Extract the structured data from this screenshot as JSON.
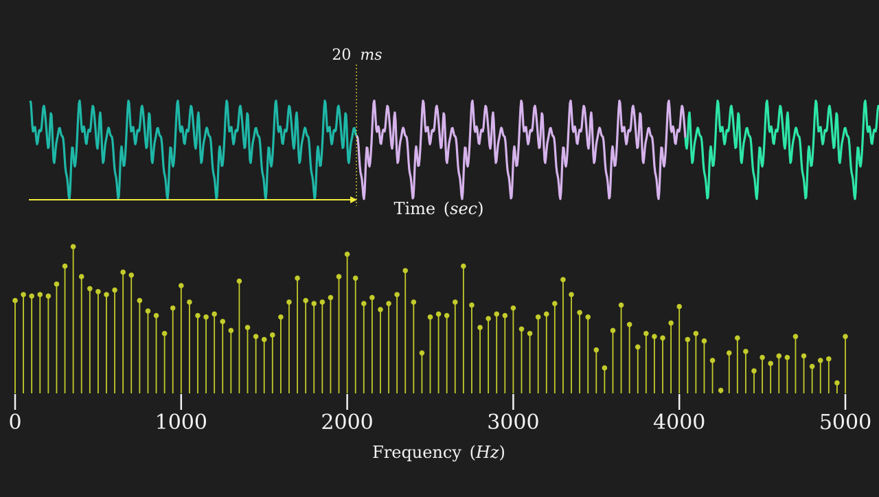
{
  "colors": {
    "background": "#1e1e1e",
    "segment_1": "#1fb8a8",
    "segment_2": "#d6b3ec",
    "segment_3": "#2ee6a8",
    "marker": "#f2ea3c",
    "stems": "#c3cc2a",
    "text": "#f2f2f2"
  },
  "chart_data": [
    {
      "type": "line",
      "title": "",
      "xlabel": "Time",
      "xlabel_unit": "sec",
      "ylabel": "",
      "annotations": [
        {
          "label_number": "20",
          "label_unit": "ms",
          "kind": "dotted-vertical-marker-with-arrow"
        }
      ],
      "series": [
        {
          "color_key": "segment_1",
          "window": 1
        },
        {
          "color_key": "segment_2",
          "window": 2
        },
        {
          "color_key": "segment_3",
          "window": 3
        }
      ],
      "window_ms": 20,
      "grid": false
    },
    {
      "type": "stem",
      "title": "",
      "xlabel": "Frequency",
      "xlabel_unit": "Hz",
      "ylabel": "",
      "xlim": [
        0,
        5000
      ],
      "xticks": [
        "0",
        "1000",
        "2000",
        "3000",
        "4000",
        "5000"
      ],
      "grid": false,
      "x": [
        0,
        50,
        100,
        150,
        200,
        250,
        300,
        350,
        400,
        450,
        500,
        550,
        600,
        650,
        700,
        750,
        800,
        850,
        900,
        950,
        1000,
        1050,
        1100,
        1150,
        1200,
        1250,
        1300,
        1350,
        1400,
        1450,
        1500,
        1550,
        1600,
        1650,
        1700,
        1750,
        1800,
        1850,
        1900,
        1950,
        2000,
        2050,
        2100,
        2150,
        2200,
        2250,
        2300,
        2350,
        2400,
        2450,
        2500,
        2550,
        2600,
        2650,
        2700,
        2750,
        2800,
        2850,
        2900,
        2950,
        3000,
        3050,
        3100,
        3150,
        3200,
        3250,
        3300,
        3350,
        3400,
        3450,
        3500,
        3550,
        3600,
        3650,
        3700,
        3750,
        3800,
        3850,
        3900,
        3950,
        4000,
        4050,
        4100,
        4150,
        4200,
        4250,
        4300,
        4350,
        4400,
        4450,
        4500,
        4550,
        4600,
        4650,
        4700,
        4750,
        4800,
        4850,
        4900,
        4950,
        5000
      ],
      "values": [
        0.62,
        0.66,
        0.65,
        0.66,
        0.65,
        0.73,
        0.85,
        0.98,
        0.78,
        0.7,
        0.68,
        0.66,
        0.69,
        0.81,
        0.79,
        0.62,
        0.55,
        0.52,
        0.4,
        0.57,
        0.72,
        0.61,
        0.52,
        0.51,
        0.53,
        0.48,
        0.42,
        0.75,
        0.44,
        0.38,
        0.36,
        0.39,
        0.51,
        0.61,
        0.77,
        0.62,
        0.6,
        0.61,
        0.64,
        0.78,
        0.93,
        0.77,
        0.6,
        0.64,
        0.56,
        0.6,
        0.66,
        0.82,
        0.61,
        0.27,
        0.51,
        0.53,
        0.52,
        0.61,
        0.85,
        0.59,
        0.44,
        0.5,
        0.53,
        0.52,
        0.57,
        0.43,
        0.4,
        0.51,
        0.53,
        0.6,
        0.76,
        0.66,
        0.54,
        0.51,
        0.29,
        0.17,
        0.42,
        0.59,
        0.46,
        0.31,
        0.4,
        0.38,
        0.37,
        0.47,
        0.58,
        0.36,
        0.4,
        0.35,
        0.22,
        0.02,
        0.27,
        0.37,
        0.28,
        0.15,
        0.24,
        0.2,
        0.25,
        0.24,
        0.38,
        0.25,
        0.18,
        0.22,
        0.23,
        0.07,
        0.38
      ]
    }
  ]
}
